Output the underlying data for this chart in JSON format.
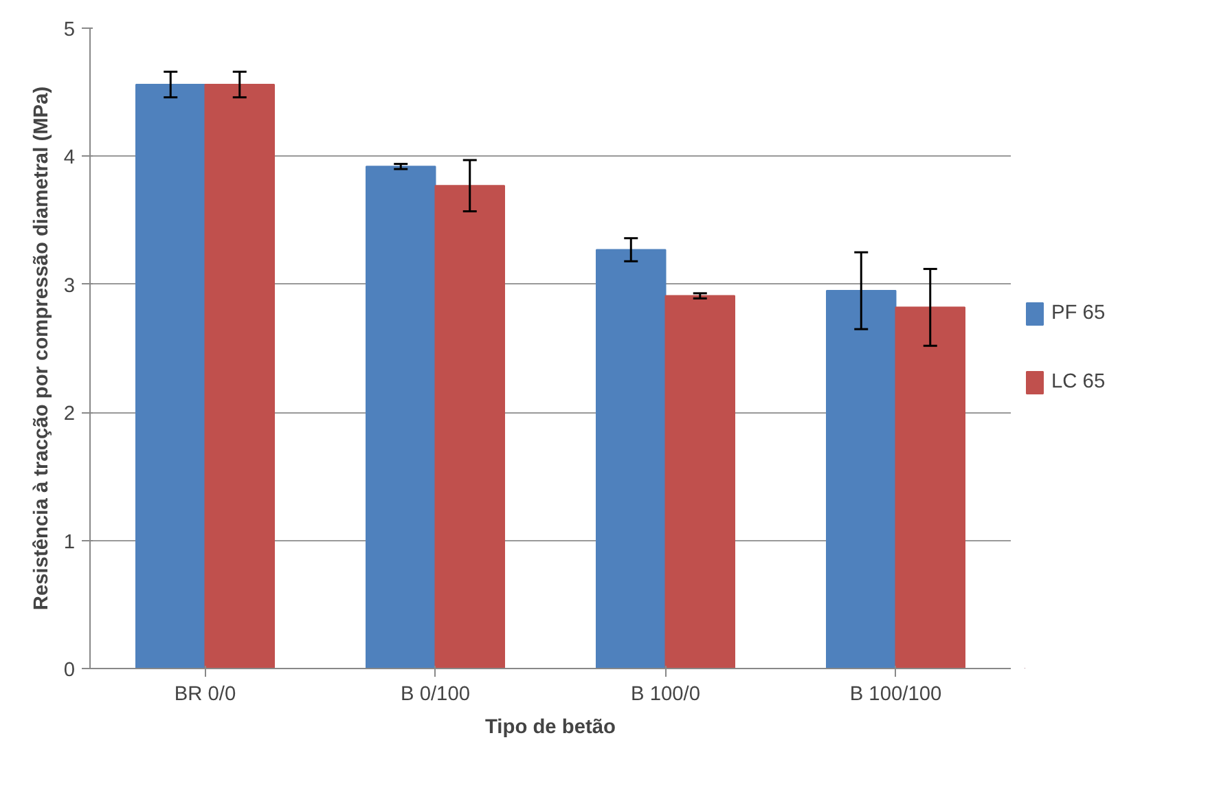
{
  "chart_data": {
    "type": "bar",
    "xlabel": "Tipo de betão",
    "ylabel": "Resistência à tracção por compressão diametral (MPa)",
    "categories": [
      "BR 0/0",
      "B 0/100",
      "B 100/0",
      "B 100/100"
    ],
    "series": [
      {
        "name": "PF 65",
        "color": "#4f81bd",
        "values": [
          4.56,
          3.92,
          3.27,
          2.95
        ],
        "errors": [
          0.1,
          0.02,
          0.09,
          0.3
        ]
      },
      {
        "name": "LC 65",
        "color": "#c0504d",
        "values": [
          4.56,
          3.77,
          2.91,
          2.82
        ],
        "errors": [
          0.1,
          0.2,
          0.02,
          0.3
        ]
      }
    ],
    "ylim": [
      0,
      5
    ],
    "yticks": [
      0,
      1,
      2,
      3,
      4,
      5
    ],
    "grid": "y",
    "legend": "right"
  }
}
